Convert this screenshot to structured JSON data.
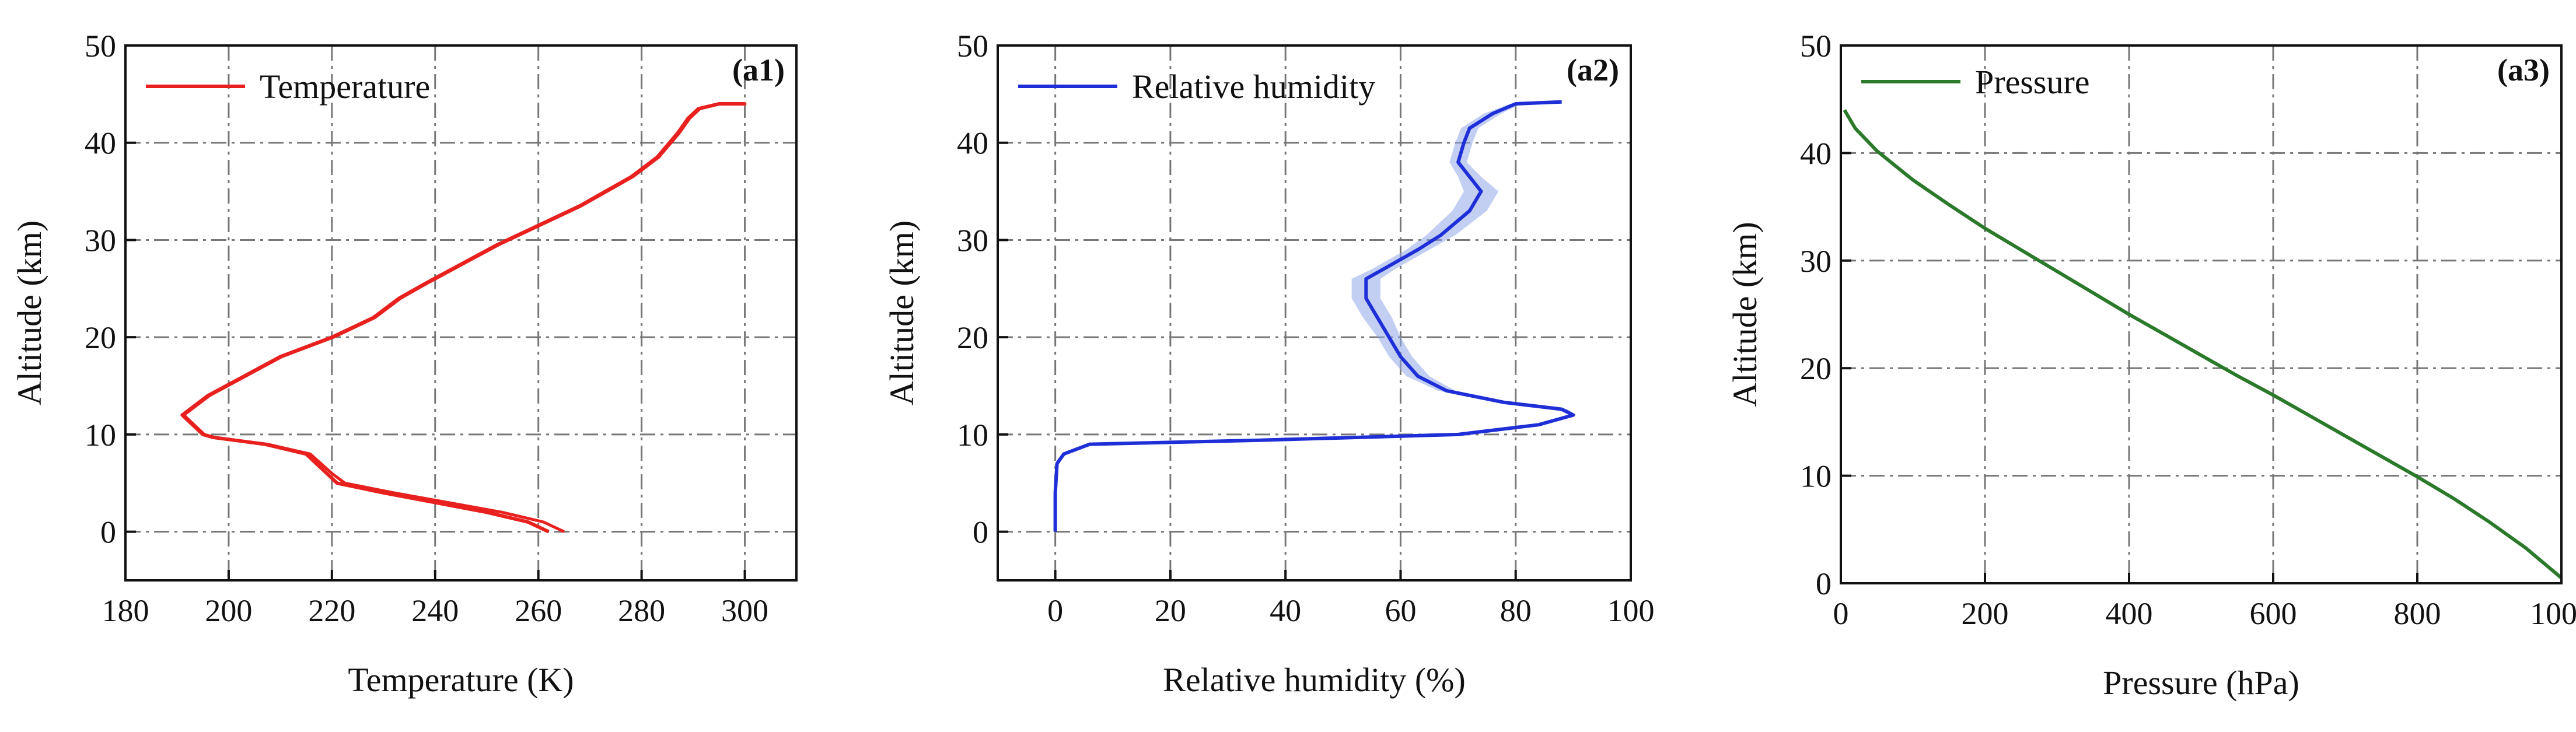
{
  "chart_data": [
    {
      "id": "a1",
      "type": "line",
      "tag": "(a1)",
      "xlabel": "Temperature (K)",
      "ylabel": "Altitude (km)",
      "xlim": [
        180,
        310
      ],
      "ylim": [
        -5,
        50
      ],
      "xticks": [
        180,
        200,
        220,
        240,
        260,
        280,
        300
      ],
      "yticks": [
        0,
        10,
        20,
        30,
        40,
        50
      ],
      "grid": true,
      "legend_position": "top-left",
      "series": [
        {
          "name": "Temperature",
          "color": "#e8201e",
          "band": true,
          "x": [
            262,
            258,
            250,
            240,
            230,
            221,
            219,
            215,
            207,
            197,
            195,
            191,
            196,
            203,
            210,
            220,
            228,
            233,
            238,
            245,
            252,
            258,
            268,
            278,
            283,
            287,
            289,
            291,
            295,
            300
          ],
          "y": [
            0,
            1,
            2,
            3,
            4,
            5,
            6,
            8,
            9,
            9.7,
            10,
            12,
            14,
            16,
            18,
            20,
            22,
            24,
            25.5,
            27.5,
            29.5,
            31,
            33.5,
            36.5,
            38.5,
            41,
            42.5,
            43.5,
            44,
            44
          ],
          "x_shift": [
            3,
            3,
            3,
            2.5,
            2,
            1.5,
            1,
            0.8,
            0.5,
            0.3,
            0.3,
            0.3,
            0.3,
            0.3,
            0.3,
            0.3,
            0.3,
            0.3,
            0.3,
            0.3,
            0.3,
            0.3,
            0.3,
            0.3,
            0.3,
            0.3,
            0.3,
            0.3,
            0.3,
            0.3
          ]
        }
      ]
    },
    {
      "id": "a2",
      "type": "line",
      "tag": "(a2)",
      "xlabel": "Relative humidity (%)",
      "ylabel": "Altitude (km)",
      "xlim": [
        -10,
        100
      ],
      "ylim": [
        -5,
        50
      ],
      "xticks": [
        0,
        20,
        40,
        60,
        80,
        100
      ],
      "yticks": [
        0,
        10,
        20,
        30,
        40,
        50
      ],
      "grid": true,
      "legend_position": "top-left",
      "series": [
        {
          "name": "Relative humidity",
          "color": "#1f2fd8",
          "band_color": "#8fa8ea",
          "x": [
            0,
            0,
            0.3,
            1.5,
            6,
            35,
            70,
            84,
            90,
            88,
            78,
            68,
            63,
            60,
            58,
            56,
            54,
            54,
            57,
            60,
            63,
            67,
            72,
            74,
            72,
            70,
            71,
            72,
            76,
            80,
            88
          ],
          "y": [
            0,
            4,
            7,
            8,
            9,
            9.4,
            10,
            11,
            12,
            12.6,
            13.3,
            14.5,
            16,
            18,
            20,
            22,
            24,
            26,
            27,
            28,
            29,
            30.5,
            33,
            35,
            36.5,
            38,
            40,
            41.5,
            43,
            44,
            44.2
          ],
          "spread": [
            0,
            0,
            0,
            0,
            0,
            0,
            0,
            0.5,
            0.5,
            1,
            1.5,
            1.5,
            2,
            2,
            2,
            2.5,
            2.5,
            2.5,
            2,
            2,
            2,
            2.5,
            3,
            3,
            2,
            1.5,
            1.5,
            1.5,
            1.5,
            1,
            0.5
          ]
        }
      ]
    },
    {
      "id": "a3",
      "type": "line",
      "tag": "(a3)",
      "xlabel": "Pressure (hPa)",
      "ylabel": "Altitude (km)",
      "xlim": [
        0,
        1000
      ],
      "ylim": [
        0,
        50
      ],
      "xticks": [
        0,
        200,
        400,
        600,
        800,
        1000
      ],
      "yticks": [
        0,
        10,
        20,
        30,
        40,
        50
      ],
      "grid": true,
      "legend_position": "top-left",
      "series": [
        {
          "name": "Pressure",
          "color": "#2b7a2b",
          "x": [
            5,
            20,
            50,
            100,
            150,
            200,
            250,
            300,
            350,
            400,
            450,
            500,
            550,
            600,
            650,
            700,
            750,
            800,
            850,
            900,
            950,
            1000
          ],
          "y": [
            44,
            42.3,
            40.2,
            37.5,
            35.2,
            33,
            31,
            29,
            27,
            25,
            23.1,
            21.2,
            19.3,
            17.5,
            15.6,
            13.7,
            11.8,
            9.9,
            7.9,
            5.7,
            3.3,
            0.5
          ]
        }
      ]
    }
  ]
}
